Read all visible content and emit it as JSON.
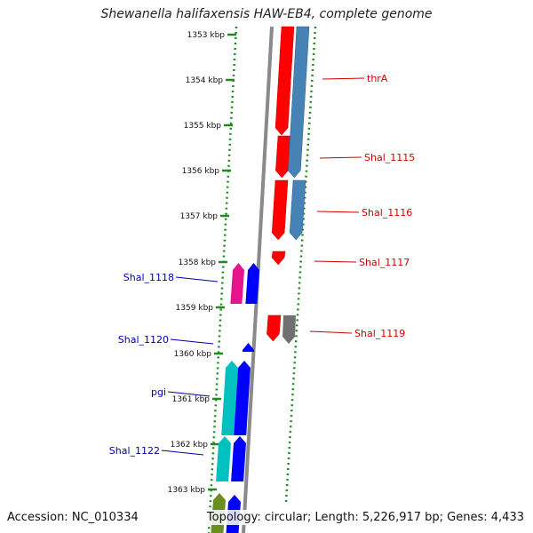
{
  "title": "Shewanella halifaxensis HAW-EB4, complete genome",
  "footer": {
    "accession": "Accession: NC_010334",
    "topology": "Topology: circular; Length: 5,226,917 bp; Genes: 4,433"
  },
  "colors": {
    "backbone": "#8a8a8a",
    "dotted_border": "#1f8a1f",
    "forward_label": "#cc0000",
    "reverse_label": "#0000aa"
  },
  "kbp_labels": [
    "1353 kbp",
    "1354 kbp",
    "1355 kbp",
    "1356 kbp",
    "1357 kbp",
    "1358 kbp",
    "1359 kbp",
    "1360 kbp",
    "1361 kbp",
    "1362 kbp",
    "1363 kbp"
  ],
  "forward_genes": [
    {
      "label": "thrA",
      "color": "#ff0000",
      "strand_color": "#4682b4"
    },
    {
      "label": "Shal_1115",
      "color": "#ff0000",
      "strand_color": "#4682b4"
    },
    {
      "label": "Shal_1116",
      "color": "#ff0000",
      "strand_color": "#4682b4"
    },
    {
      "label": "Shal_1117",
      "color": "#ff0000",
      "strand_color": ""
    },
    {
      "label": "Shal_1119",
      "color": "#ff0000",
      "strand_color": "#707070"
    }
  ],
  "reverse_genes": [
    {
      "label": "Shal_1118",
      "color": "#e5148c",
      "strand_color": "#0000ff"
    },
    {
      "label": "Shal_1120",
      "color": "",
      "strand_color": "#0000ff"
    },
    {
      "label": "pgi",
      "color": "#00c0c0",
      "strand_color": "#0000ff"
    },
    {
      "label": "Shal_1122",
      "color": "#00c0c0",
      "strand_color": "#0000ff"
    }
  ]
}
